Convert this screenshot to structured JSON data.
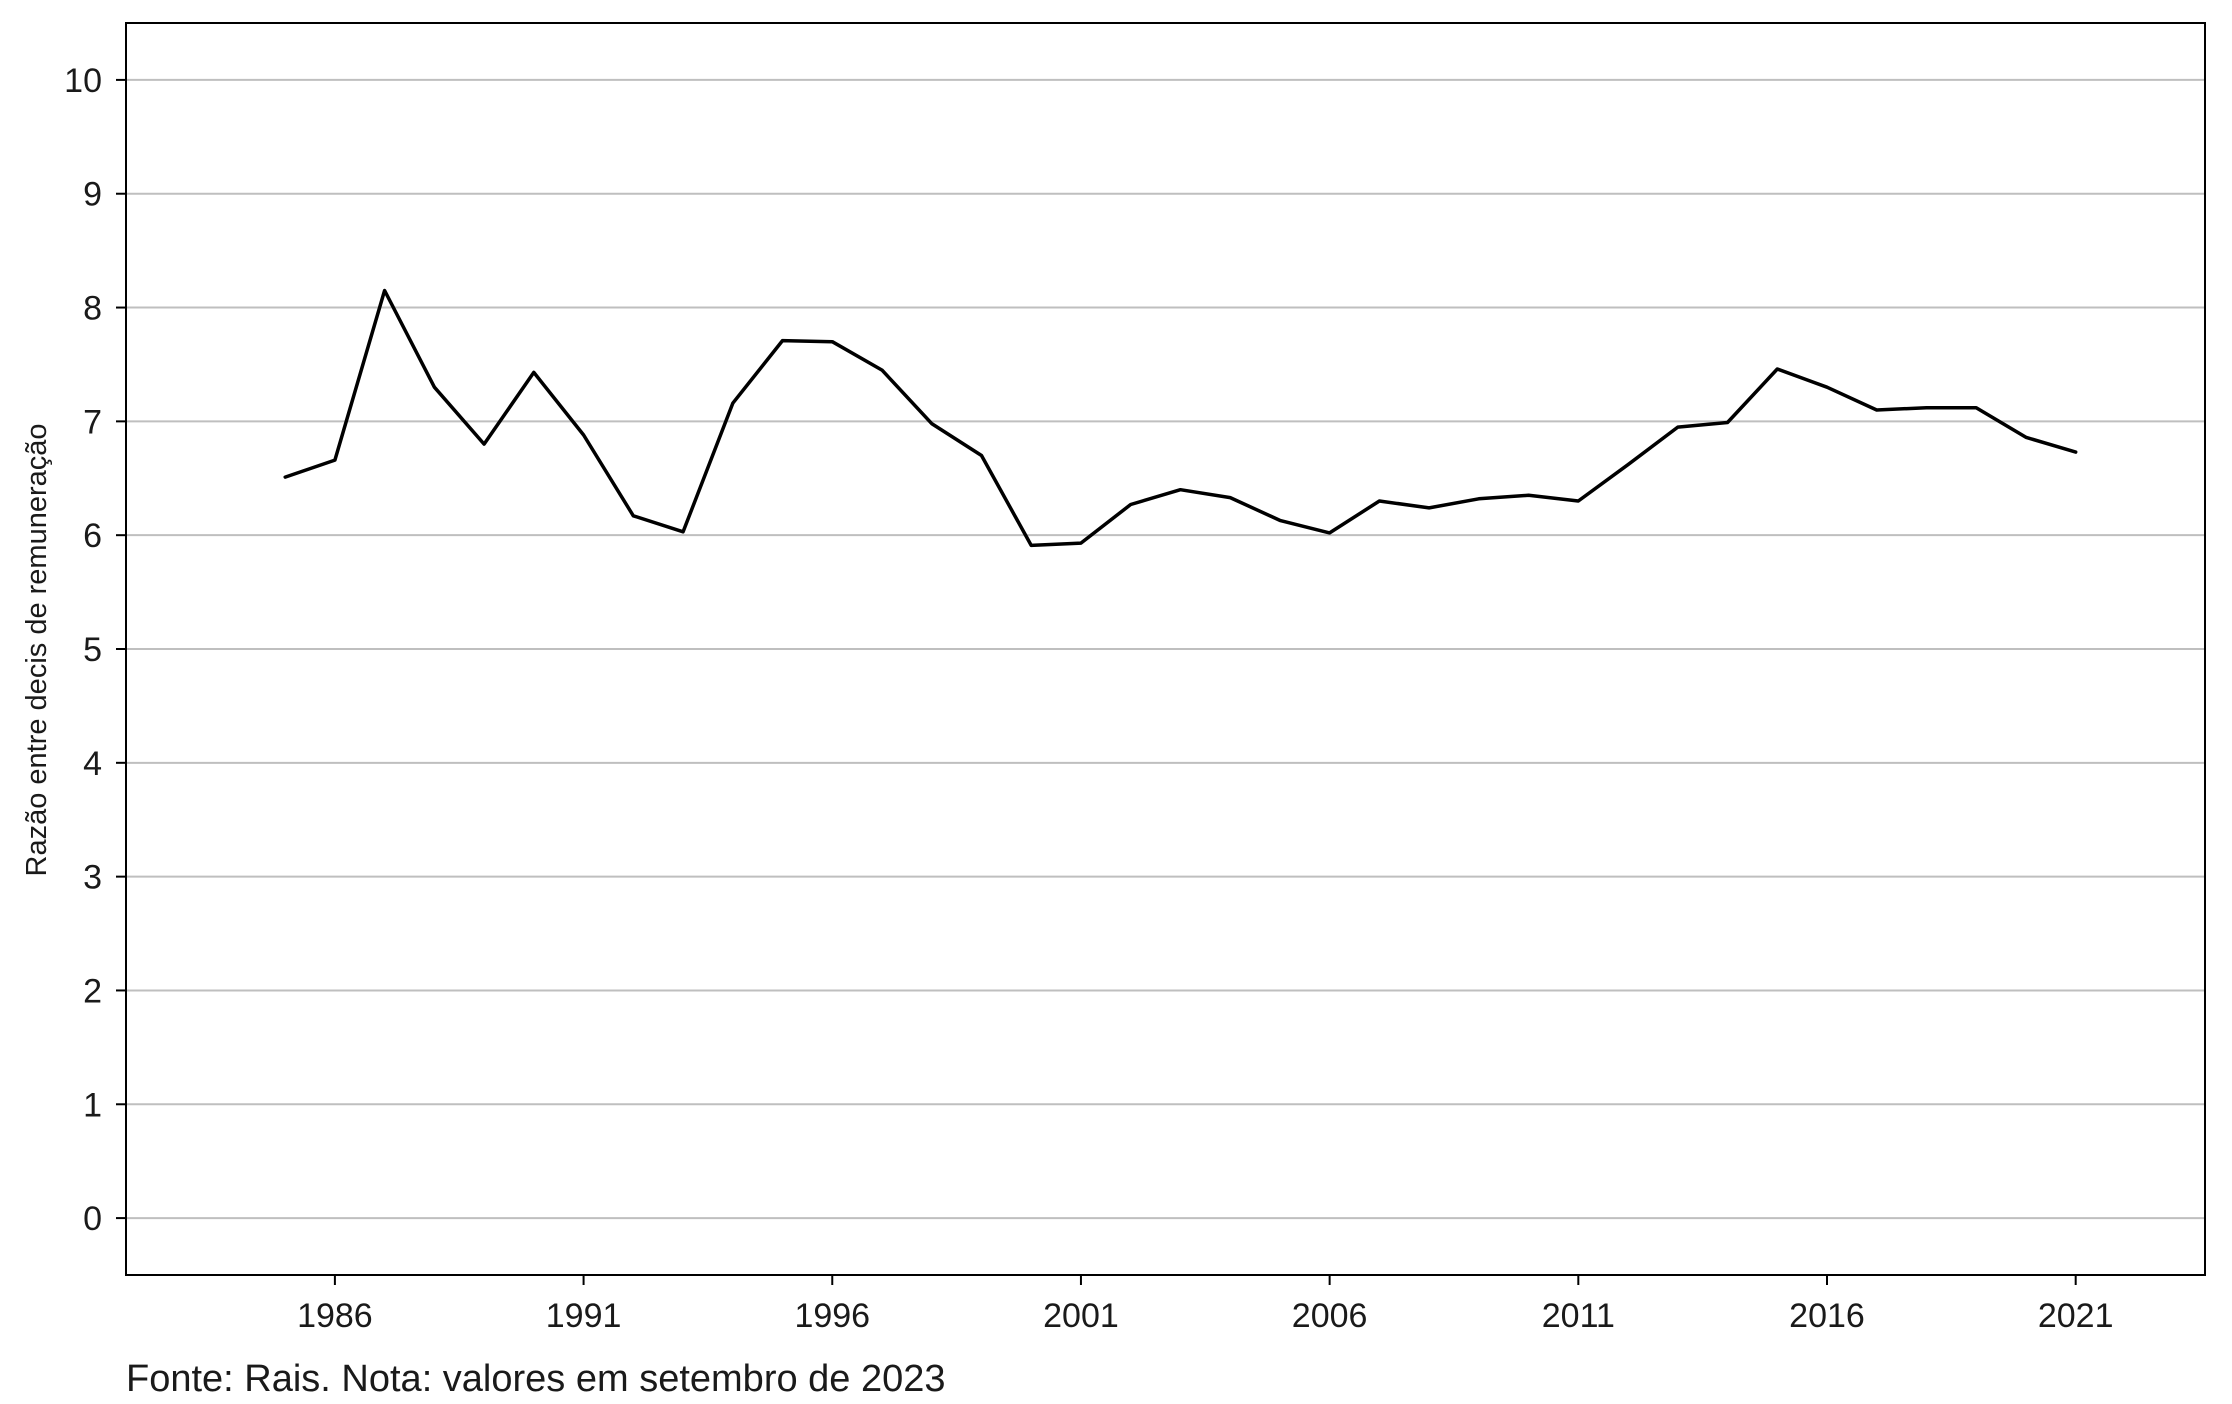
{
  "chart_data": {
    "type": "line",
    "title": "",
    "xlabel": "",
    "ylabel": "Razão entre decis de remuneração",
    "x": [
      1985,
      1986,
      1987,
      1988,
      1989,
      1990,
      1991,
      1992,
      1993,
      1994,
      1995,
      1996,
      1997,
      1998,
      1999,
      2000,
      2001,
      2002,
      2003,
      2004,
      2005,
      2006,
      2007,
      2008,
      2009,
      2010,
      2011,
      2012,
      2013,
      2014,
      2015,
      2016,
      2017,
      2018,
      2019,
      2020,
      2021
    ],
    "series": [
      {
        "name": "",
        "values": [
          6.51,
          6.66,
          8.15,
          7.3,
          6.8,
          7.43,
          6.88,
          6.17,
          6.03,
          7.16,
          7.71,
          7.7,
          7.45,
          6.98,
          6.7,
          5.91,
          5.93,
          6.27,
          6.4,
          6.33,
          6.13,
          6.02,
          6.3,
          6.24,
          6.32,
          6.35,
          6.3,
          6.62,
          6.95,
          6.99,
          7.46,
          7.3,
          7.1,
          7.12,
          7.12,
          6.86,
          6.73
        ]
      }
    ],
    "xticks": [
      1986,
      1991,
      1996,
      2001,
      2006,
      2011,
      2016,
      2021
    ],
    "yticks": [
      0,
      1,
      2,
      3,
      4,
      5,
      6,
      7,
      8,
      9,
      10
    ],
    "xlim": [
      1981.8,
      2023.6
    ],
    "ylim": [
      -0.5,
      10.5
    ],
    "grid": "horizontal",
    "colors": {
      "line": "#000000",
      "grid": "#bfbfbf",
      "frame": "#000000"
    }
  },
  "footnote": "Fonte: Rais. Nota: valores em setembro de 2023"
}
